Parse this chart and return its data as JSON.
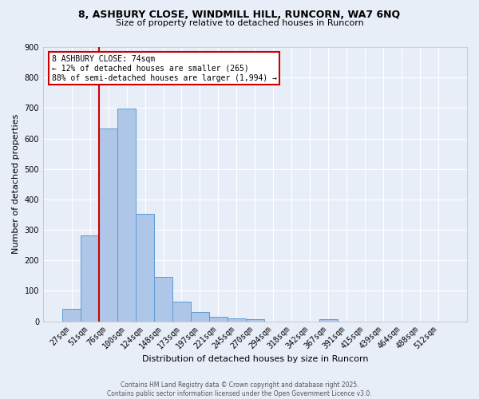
{
  "title_line1": "8, ASHBURY CLOSE, WINDMILL HILL, RUNCORN, WA7 6NQ",
  "title_line2": "Size of property relative to detached houses in Runcorn",
  "xlabel": "Distribution of detached houses by size in Runcorn",
  "ylabel": "Number of detached properties",
  "categories": [
    "27sqm",
    "51sqm",
    "76sqm",
    "100sqm",
    "124sqm",
    "148sqm",
    "173sqm",
    "197sqm",
    "221sqm",
    "245sqm",
    "270sqm",
    "294sqm",
    "318sqm",
    "342sqm",
    "367sqm",
    "391sqm",
    "415sqm",
    "439sqm",
    "464sqm",
    "488sqm",
    "512sqm"
  ],
  "values": [
    42,
    283,
    634,
    697,
    352,
    145,
    65,
    30,
    14,
    10,
    7,
    0,
    0,
    0,
    8,
    0,
    0,
    0,
    0,
    0,
    0
  ],
  "bar_color": "#aec6e8",
  "bar_edge_color": "#5b9bd5",
  "background_color": "#e8eef8",
  "grid_color": "#ffffff",
  "vline_color": "#cc0000",
  "annotation_text": "8 ASHBURY CLOSE: 74sqm\n← 12% of detached houses are smaller (265)\n88% of semi-detached houses are larger (1,994) →",
  "annotation_box_color": "#ffffff",
  "annotation_box_edge": "#cc0000",
  "ylim": [
    0,
    900
  ],
  "yticks": [
    0,
    100,
    200,
    300,
    400,
    500,
    600,
    700,
    800,
    900
  ],
  "footnote": "Contains HM Land Registry data © Crown copyright and database right 2025.\nContains public sector information licensed under the Open Government Licence v3.0."
}
